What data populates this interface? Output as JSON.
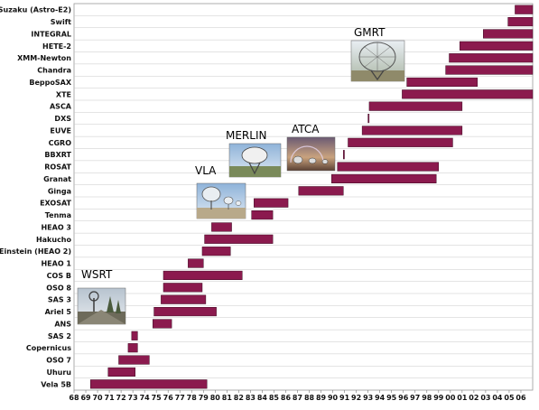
{
  "chart_data": {
    "type": "bar",
    "orientation": "horizontal-timeline",
    "title": "",
    "xlabel": "",
    "ylabel": "",
    "xlim": [
      1968,
      2007
    ],
    "grid": "horizontal",
    "bar_color": "#8b1a4e",
    "x_ticks": [
      "68",
      "69",
      "70",
      "71",
      "72",
      "73",
      "74",
      "75",
      "76",
      "77",
      "78",
      "79",
      "80",
      "81",
      "82",
      "83",
      "84",
      "85",
      "86",
      "87",
      "88",
      "89",
      "90",
      "91",
      "92",
      "93",
      "94",
      "95",
      "96",
      "97",
      "98",
      "99",
      "00",
      "01",
      "02",
      "03",
      "04",
      "05",
      "06"
    ],
    "categories": [
      "Suzaku (Astro-E2)",
      "Swift",
      "INTEGRAL",
      "HETE-2",
      "XMM-Newton",
      "Chandra",
      "BeppoSAX",
      "XTE",
      "ASCA",
      "DXS",
      "EUVE",
      "CGRO",
      "BBXRT",
      "ROSAT",
      "Granat",
      "Ginga",
      "EXOSAT",
      "Tenma",
      "HEAO 3",
      "Hakucho",
      "Einstein (HEAO 2)",
      "HEAO 1",
      "COS B",
      "OSO 8",
      "SAS 3",
      "Ariel 5",
      "ANS",
      "SAS 2",
      "Copernicus",
      "OSO 7",
      "Uhuru",
      "Vela 5B"
    ],
    "intervals": [
      [
        2005.5,
        2007.0
      ],
      [
        2004.9,
        2007.0
      ],
      [
        2002.8,
        2007.0
      ],
      [
        2000.8,
        2007.0
      ],
      [
        1999.9,
        2007.0
      ],
      [
        1999.6,
        2007.0
      ],
      [
        1996.3,
        2002.3
      ],
      [
        1995.9,
        2007.0
      ],
      [
        1993.1,
        2001.0
      ],
      [
        1993.0,
        1993.05
      ],
      [
        1992.5,
        2001.0
      ],
      [
        1991.3,
        2000.2
      ],
      [
        1990.9,
        1990.95
      ],
      [
        1990.4,
        1999.0
      ],
      [
        1989.9,
        1998.8
      ],
      [
        1987.1,
        1990.9
      ],
      [
        1983.3,
        1986.2
      ],
      [
        1983.1,
        1984.9
      ],
      [
        1979.7,
        1981.4
      ],
      [
        1979.1,
        1984.9
      ],
      [
        1978.9,
        1981.3
      ],
      [
        1977.7,
        1979.0
      ],
      [
        1975.6,
        1982.3
      ],
      [
        1975.6,
        1978.9
      ],
      [
        1975.4,
        1979.2
      ],
      [
        1974.8,
        1980.1
      ],
      [
        1974.7,
        1976.3
      ],
      [
        1972.9,
        1973.4
      ],
      [
        1972.6,
        1973.4
      ],
      [
        1971.8,
        1974.4
      ],
      [
        1970.9,
        1973.2
      ],
      [
        1969.4,
        1979.3
      ]
    ],
    "annotations": [
      {
        "label": "GMRT"
      },
      {
        "label": "MERLIN"
      },
      {
        "label": "ATCA"
      },
      {
        "label": "VLA"
      },
      {
        "label": "WSRT"
      }
    ]
  }
}
